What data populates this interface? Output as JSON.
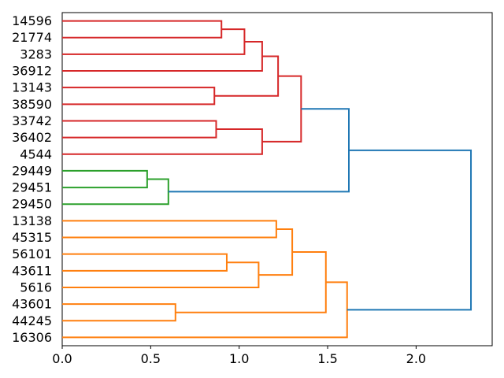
{
  "figure": {
    "title": "",
    "background": "#ffffff"
  },
  "chart_data": {
    "type": "dendrogram",
    "title": "",
    "xlabel": "",
    "ylabel": "",
    "orientation": "left-to-right",
    "grid": false,
    "legend": null,
    "xlim": [
      0,
      2.43
    ],
    "xticks": [
      {
        "value": 0.0,
        "label": "0.0"
      },
      {
        "value": 0.5,
        "label": "0.5"
      },
      {
        "value": 1.0,
        "label": "1.0"
      },
      {
        "value": 1.5,
        "label": "1.5"
      },
      {
        "value": 2.0,
        "label": "2.0"
      }
    ],
    "leaves": [
      "14596",
      "21774",
      "3283",
      "36912",
      "13143",
      "38590",
      "33742",
      "36402",
      "4544",
      "29449",
      "29451",
      "29450",
      "13138",
      "45315",
      "56101",
      "43611",
      "5616",
      "43601",
      "44245",
      "16306"
    ],
    "colors": {
      "red": "#d62728",
      "green": "#2ca02c",
      "orange": "#ff7f0e",
      "blue": "#1f77b4",
      "spine": "#000000"
    },
    "links": [
      {
        "a": "leaf:0",
        "b": "leaf:1",
        "height": 0.9,
        "color": "red"
      },
      {
        "a": "node:0",
        "b": "leaf:2",
        "height": 1.03,
        "color": "red"
      },
      {
        "a": "node:1",
        "b": "leaf:3",
        "height": 1.13,
        "color": "red"
      },
      {
        "a": "leaf:4",
        "b": "leaf:5",
        "height": 0.86,
        "color": "red"
      },
      {
        "a": "node:2",
        "b": "node:3",
        "height": 1.22,
        "color": "red"
      },
      {
        "a": "leaf:6",
        "b": "leaf:7",
        "height": 0.87,
        "color": "red"
      },
      {
        "a": "node:5",
        "b": "leaf:8",
        "height": 1.13,
        "color": "red"
      },
      {
        "a": "node:4",
        "b": "node:6",
        "height": 1.35,
        "color": "red"
      },
      {
        "a": "leaf:9",
        "b": "leaf:10",
        "height": 0.48,
        "color": "green"
      },
      {
        "a": "node:8",
        "b": "leaf:11",
        "height": 0.6,
        "color": "green"
      },
      {
        "a": "leaf:12",
        "b": "leaf:13",
        "height": 1.21,
        "color": "orange"
      },
      {
        "a": "leaf:14",
        "b": "leaf:15",
        "height": 0.93,
        "color": "orange"
      },
      {
        "a": "node:11",
        "b": "leaf:16",
        "height": 1.11,
        "color": "orange"
      },
      {
        "a": "node:10",
        "b": "node:12",
        "height": 1.3,
        "color": "orange"
      },
      {
        "a": "leaf:17",
        "b": "leaf:18",
        "height": 0.64,
        "color": "orange"
      },
      {
        "a": "node:13",
        "b": "node:14",
        "height": 1.49,
        "color": "orange"
      },
      {
        "a": "node:15",
        "b": "leaf:19",
        "height": 1.61,
        "color": "orange"
      },
      {
        "a": "node:7",
        "b": "node:9",
        "height": 1.62,
        "color": "blue"
      },
      {
        "a": "node:17",
        "b": "node:16",
        "height": 2.31,
        "color": "blue"
      }
    ]
  }
}
